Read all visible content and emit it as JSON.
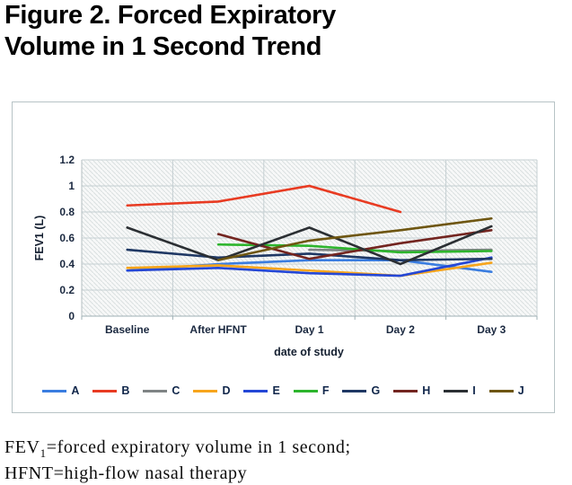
{
  "title": {
    "line1": "Figure 2. Forced Expiratory",
    "line2": "Volume in 1 Second Trend"
  },
  "footnote": {
    "fev_label": "FEV",
    "fev_sub": "1",
    "fev_rest": "=forced expiratory volume in 1 second;",
    "line2": "HFNT=high-flow nasal therapy"
  },
  "chart_data": {
    "type": "line",
    "title": "",
    "xlabel": "date of study",
    "ylabel": "FEV1 (L)",
    "categories": [
      "Baseline",
      "After HFNT",
      "Day 1",
      "Day 2",
      "Day 3"
    ],
    "ylim": [
      0,
      1.2
    ],
    "ytick_step": 0.2,
    "ytick_labels": [
      "0",
      "0.2",
      "0.4",
      "0.6",
      "0.8",
      "1",
      "1.2"
    ],
    "grid": true,
    "plot_background": "light-diagonal-hatch",
    "legend_position": "bottom",
    "colors": {
      "gridline": "#c5cfd2",
      "hatch_stripe": "#d9dfe0",
      "plot_bg": "#f7f8f8",
      "axis_line": "#9fb0b5"
    },
    "series": [
      {
        "name": "A",
        "color": "#3a7de0",
        "values": [
          0.35,
          0.4,
          0.43,
          0.43,
          0.34
        ]
      },
      {
        "name": "B",
        "color": "#e83b22",
        "values": [
          0.85,
          0.88,
          1.0,
          0.8,
          null
        ]
      },
      {
        "name": "C",
        "color": "#7f8485",
        "values": [
          null,
          null,
          0.51,
          0.5,
          0.51
        ]
      },
      {
        "name": "D",
        "color": "#f7a51c",
        "values": [
          0.37,
          0.39,
          0.35,
          0.31,
          0.41
        ]
      },
      {
        "name": "E",
        "color": "#2447d6",
        "values": [
          0.35,
          0.37,
          0.33,
          0.31,
          0.45
        ]
      },
      {
        "name": "F",
        "color": "#2db52d",
        "values": [
          null,
          0.55,
          0.54,
          0.49,
          0.5
        ]
      },
      {
        "name": "G",
        "color": "#1f3864",
        "values": [
          0.51,
          0.45,
          0.48,
          0.43,
          0.44
        ]
      },
      {
        "name": "H",
        "color": "#732520",
        "values": [
          null,
          0.63,
          0.44,
          0.56,
          0.66
        ]
      },
      {
        "name": "I",
        "color": "#2b2f33",
        "values": [
          0.68,
          0.43,
          0.68,
          0.4,
          0.69
        ]
      },
      {
        "name": "J",
        "color": "#6e5611",
        "values": [
          null,
          0.43,
          0.58,
          0.66,
          0.75
        ]
      }
    ]
  }
}
